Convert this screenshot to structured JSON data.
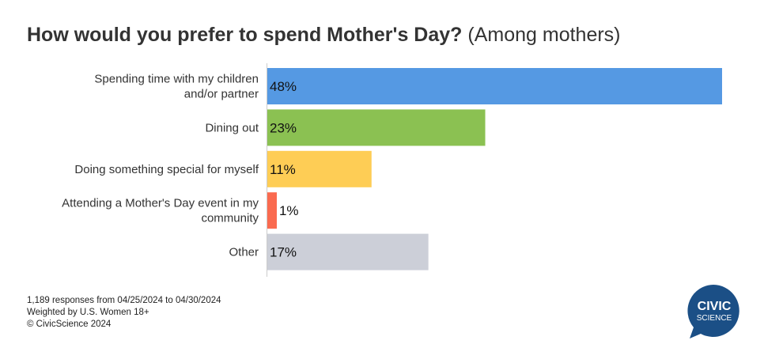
{
  "title": {
    "main": "How would you prefer to spend Mother's Day?",
    "sub": "(Among mothers)"
  },
  "chart_data": {
    "type": "bar",
    "orientation": "horizontal",
    "categories": [
      [
        "Spending time with my children",
        "and/or partner"
      ],
      [
        "Dining out"
      ],
      [
        "Doing something special for myself"
      ],
      [
        "Attending a Mother's Day event in my",
        "community"
      ],
      [
        "Other"
      ]
    ],
    "values": [
      48,
      23,
      11,
      1,
      17
    ],
    "value_labels": [
      "48%",
      "23%",
      "11%",
      "1%",
      "17%"
    ],
    "colors": [
      "#5599e3",
      "#8bc152",
      "#fecd55",
      "#fa6a4f",
      "#cccfd8"
    ],
    "xlim": [
      0,
      48
    ],
    "grid": false,
    "legend": "none"
  },
  "footnotes": [
    "1,189 responses from 04/25/2024 to 04/30/2024",
    "Weighted by U.S. Women 18+",
    "© CivicScience 2024"
  ],
  "logo": {
    "line1": "CIVIC",
    "line2": "SCIENCE",
    "color": "#1b4f86"
  }
}
